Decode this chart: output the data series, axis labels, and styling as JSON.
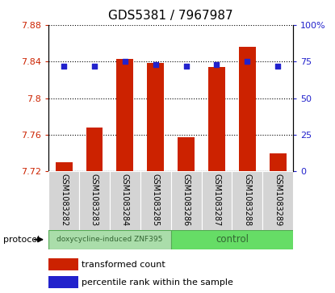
{
  "title": "GDS5381 / 7967987",
  "samples": [
    "GSM1083282",
    "GSM1083283",
    "GSM1083284",
    "GSM1083285",
    "GSM1083286",
    "GSM1083287",
    "GSM1083288",
    "GSM1083289"
  ],
  "transformed_counts": [
    7.73,
    7.768,
    7.843,
    7.838,
    7.757,
    7.834,
    7.856,
    7.74
  ],
  "percentile_ranks": [
    72,
    72,
    75,
    73,
    72,
    73,
    75,
    72
  ],
  "y_min": 7.72,
  "y_max": 7.88,
  "y_ticks": [
    7.72,
    7.76,
    7.8,
    7.84,
    7.88
  ],
  "y2_ticks": [
    0,
    25,
    50,
    75,
    100
  ],
  "bar_color": "#cc2200",
  "dot_color": "#2222cc",
  "protocol_groups": [
    {
      "label": "doxycycline-induced ZNF395",
      "n_samples": 4,
      "color": "#aaddaa"
    },
    {
      "label": "control",
      "n_samples": 4,
      "color": "#66dd66"
    }
  ],
  "protocol_label": "protocol",
  "legend_items": [
    {
      "label": "transformed count",
      "color": "#cc2200"
    },
    {
      "label": "percentile rank within the sample",
      "color": "#2222cc"
    }
  ],
  "bar_bottom": 7.72,
  "bar_width": 0.55,
  "dot_size": 18,
  "title_fontsize": 11,
  "tick_fontsize": 8,
  "label_fontsize": 7,
  "legend_fontsize": 8
}
